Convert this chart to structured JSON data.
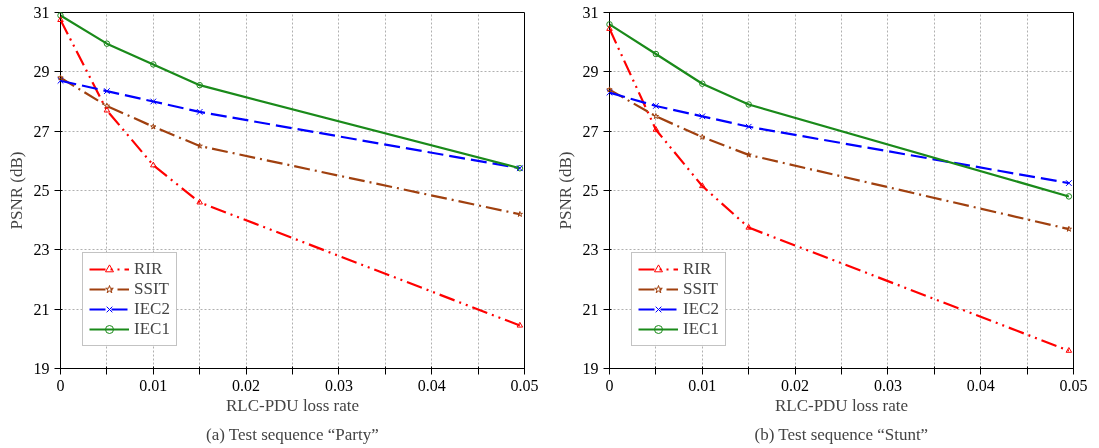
{
  "chart_data": [
    {
      "type": "line",
      "title": "(a) Test sequence “Party”",
      "xlabel": "RLC-PDU loss rate",
      "ylabel": "PSNR (dB)",
      "x": [
        0,
        0.005,
        0.01,
        0.015,
        0.0495
      ],
      "xlim": [
        0,
        0.05
      ],
      "ylim": [
        19,
        31
      ],
      "xticks": [
        0,
        {
          "value": 0.005,
          "label": null
        },
        0.01,
        {
          "value": 0.015,
          "label": null
        },
        0.02,
        {
          "value": 0.025,
          "label": null
        },
        0.03,
        {
          "value": 0.035,
          "label": null
        },
        0.04,
        {
          "value": 0.045,
          "label": null
        },
        0.05
      ],
      "yticks": [
        19,
        21,
        23,
        25,
        27,
        29,
        31
      ],
      "grid": true,
      "legend": "bottom left",
      "series": [
        {
          "name": "RIR",
          "color": "#ff0000",
          "marker": "triangle",
          "line_style": "dashdotdot",
          "values": [
            30.75,
            27.7,
            25.85,
            24.6,
            20.45
          ]
        },
        {
          "name": "SSIT",
          "color": "#a0400f",
          "marker": "star",
          "line_style": "dashdot",
          "values": [
            28.8,
            27.85,
            27.15,
            26.5,
            24.2
          ]
        },
        {
          "name": "IEC2",
          "color": "#0000ff",
          "marker": "cross",
          "line_style": "dashed",
          "values": [
            28.7,
            28.35,
            28.0,
            27.65,
            25.75
          ]
        },
        {
          "name": "IEC1",
          "color": "#1a8a1a",
          "marker": "circle",
          "line_style": "solid",
          "values": [
            30.9,
            29.95,
            29.25,
            28.55,
            25.75
          ]
        }
      ]
    },
    {
      "type": "line",
      "title": "(b) Test sequence “Stunt”",
      "xlabel": "RLC-PDU loss rate",
      "ylabel": "PSNR (dB)",
      "x": [
        0,
        0.005,
        0.01,
        0.015,
        0.0495
      ],
      "xlim": [
        0,
        0.05
      ],
      "ylim": [
        19,
        31
      ],
      "xticks": [
        0,
        {
          "value": 0.005,
          "label": null
        },
        0.01,
        {
          "value": 0.015,
          "label": null
        },
        0.02,
        {
          "value": 0.025,
          "label": null
        },
        0.03,
        {
          "value": 0.035,
          "label": null
        },
        0.04,
        {
          "value": 0.045,
          "label": null
        },
        0.05
      ],
      "yticks": [
        19,
        21,
        23,
        25,
        27,
        29,
        31
      ],
      "grid": true,
      "legend": "bottom left",
      "series": [
        {
          "name": "RIR",
          "color": "#ff0000",
          "marker": "triangle",
          "line_style": "dashdotdot",
          "values": [
            30.45,
            27.05,
            25.15,
            23.75,
            19.6
          ]
        },
        {
          "name": "SSIT",
          "color": "#a0400f",
          "marker": "star",
          "line_style": "dashdot",
          "values": [
            28.4,
            27.5,
            26.8,
            26.2,
            23.7
          ]
        },
        {
          "name": "IEC2",
          "color": "#0000ff",
          "marker": "cross",
          "line_style": "dashed",
          "values": [
            28.3,
            27.85,
            27.5,
            27.15,
            25.25
          ]
        },
        {
          "name": "IEC1",
          "color": "#1a8a1a",
          "marker": "circle",
          "line_style": "solid",
          "values": [
            30.6,
            29.6,
            28.6,
            27.9,
            24.8
          ]
        }
      ]
    }
  ]
}
